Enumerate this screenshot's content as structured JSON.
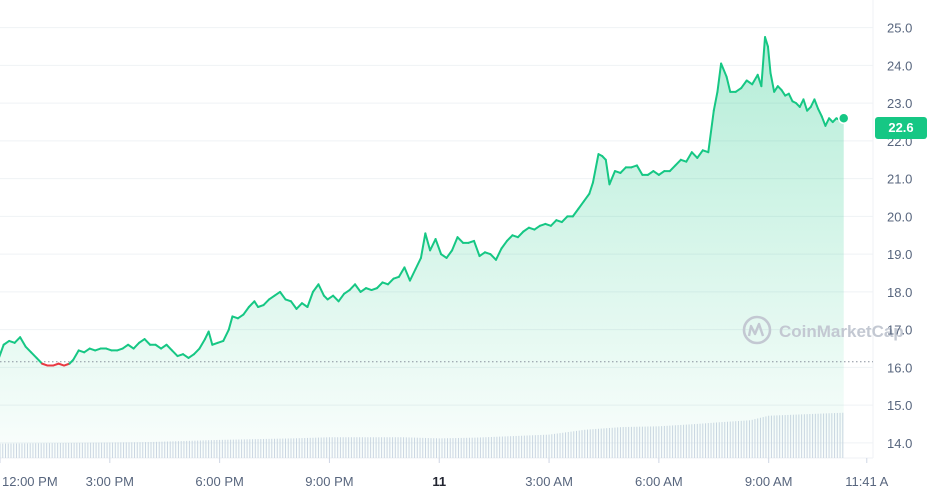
{
  "chart_data": {
    "type": "area",
    "title": "",
    "xlabel": "",
    "ylabel": "",
    "ylim": [
      13.6,
      25.6
    ],
    "y_ticks": [
      "25.0",
      "24.0",
      "23.0",
      "22.0",
      "21.0",
      "20.0",
      "19.0",
      "18.0",
      "17.0",
      "16.0",
      "15.0",
      "14.0"
    ],
    "x_ticks": [
      {
        "label": "12:00 PM",
        "hour": 0,
        "bold": false
      },
      {
        "label": "3:00 PM",
        "hour": 3,
        "bold": false
      },
      {
        "label": "6:00 PM",
        "hour": 6,
        "bold": false
      },
      {
        "label": "9:00 PM",
        "hour": 9,
        "bold": false
      },
      {
        "label": "11",
        "hour": 12,
        "bold": true
      },
      {
        "label": "3:00 AM",
        "hour": 15,
        "bold": false
      },
      {
        "label": "6:00 AM",
        "hour": 18,
        "bold": false
      },
      {
        "label": "9:00 AM",
        "hour": 21,
        "bold": false
      },
      {
        "label": "11:41 A",
        "hour": 23.68,
        "bold": false
      }
    ],
    "x_range_hours": [
      0,
      23.85
    ],
    "baseline": 16.15,
    "last_price_label": "22.6",
    "watermark": "CoinMarketCap",
    "grid": true,
    "colors": {
      "up": "#16c784",
      "down": "#ea3943",
      "fill_top": "#16c784",
      "grid": "#eff2f5",
      "volume": "#cfd6e4",
      "baseline": "#8a919e"
    },
    "series": [
      {
        "values": [
          [
            -0.05,
            16.2
          ],
          [
            0.1,
            16.6
          ],
          [
            0.25,
            16.7
          ],
          [
            0.4,
            16.65
          ],
          [
            0.55,
            16.8
          ],
          [
            0.7,
            16.55
          ],
          [
            0.85,
            16.4
          ],
          [
            1.0,
            16.25
          ],
          [
            1.15,
            16.1
          ],
          [
            1.3,
            16.05
          ],
          [
            1.45,
            16.05
          ],
          [
            1.6,
            16.1
          ],
          [
            1.75,
            16.05
          ],
          [
            1.9,
            16.1
          ],
          [
            2.0,
            16.2
          ],
          [
            2.15,
            16.45
          ],
          [
            2.3,
            16.4
          ],
          [
            2.45,
            16.5
          ],
          [
            2.6,
            16.45
          ],
          [
            2.75,
            16.5
          ],
          [
            2.9,
            16.5
          ],
          [
            3.05,
            16.45
          ],
          [
            3.2,
            16.45
          ],
          [
            3.35,
            16.5
          ],
          [
            3.5,
            16.6
          ],
          [
            3.65,
            16.5
          ],
          [
            3.8,
            16.65
          ],
          [
            3.95,
            16.75
          ],
          [
            4.1,
            16.6
          ],
          [
            4.25,
            16.6
          ],
          [
            4.4,
            16.5
          ],
          [
            4.55,
            16.6
          ],
          [
            4.7,
            16.45
          ],
          [
            4.85,
            16.3
          ],
          [
            5.0,
            16.35
          ],
          [
            5.15,
            16.25
          ],
          [
            5.3,
            16.35
          ],
          [
            5.45,
            16.5
          ],
          [
            5.6,
            16.75
          ],
          [
            5.7,
            16.95
          ],
          [
            5.8,
            16.6
          ],
          [
            5.95,
            16.65
          ],
          [
            6.1,
            16.7
          ],
          [
            6.25,
            17.0
          ],
          [
            6.35,
            17.35
          ],
          [
            6.5,
            17.3
          ],
          [
            6.65,
            17.4
          ],
          [
            6.8,
            17.6
          ],
          [
            6.95,
            17.75
          ],
          [
            7.05,
            17.6
          ],
          [
            7.2,
            17.65
          ],
          [
            7.35,
            17.8
          ],
          [
            7.5,
            17.9
          ],
          [
            7.65,
            18.0
          ],
          [
            7.8,
            17.8
          ],
          [
            7.95,
            17.75
          ],
          [
            8.1,
            17.55
          ],
          [
            8.25,
            17.7
          ],
          [
            8.4,
            17.6
          ],
          [
            8.55,
            18.0
          ],
          [
            8.7,
            18.2
          ],
          [
            8.85,
            17.9
          ],
          [
            8.95,
            17.8
          ],
          [
            9.1,
            17.9
          ],
          [
            9.25,
            17.75
          ],
          [
            9.4,
            17.95
          ],
          [
            9.55,
            18.05
          ],
          [
            9.7,
            18.2
          ],
          [
            9.85,
            18.0
          ],
          [
            10.0,
            18.1
          ],
          [
            10.15,
            18.05
          ],
          [
            10.3,
            18.1
          ],
          [
            10.45,
            18.25
          ],
          [
            10.6,
            18.2
          ],
          [
            10.75,
            18.35
          ],
          [
            10.9,
            18.4
          ],
          [
            11.05,
            18.65
          ],
          [
            11.2,
            18.3
          ],
          [
            11.35,
            18.6
          ],
          [
            11.5,
            18.9
          ],
          [
            11.62,
            19.55
          ],
          [
            11.75,
            19.1
          ],
          [
            11.9,
            19.4
          ],
          [
            12.05,
            19.0
          ],
          [
            12.2,
            18.9
          ],
          [
            12.35,
            19.1
          ],
          [
            12.5,
            19.45
          ],
          [
            12.65,
            19.3
          ],
          [
            12.8,
            19.3
          ],
          [
            12.95,
            19.35
          ],
          [
            13.1,
            18.95
          ],
          [
            13.25,
            19.05
          ],
          [
            13.4,
            19.0
          ],
          [
            13.55,
            18.85
          ],
          [
            13.7,
            19.15
          ],
          [
            13.85,
            19.35
          ],
          [
            14.0,
            19.5
          ],
          [
            14.15,
            19.45
          ],
          [
            14.3,
            19.6
          ],
          [
            14.45,
            19.7
          ],
          [
            14.6,
            19.65
          ],
          [
            14.75,
            19.75
          ],
          [
            14.9,
            19.8
          ],
          [
            15.05,
            19.75
          ],
          [
            15.2,
            19.9
          ],
          [
            15.35,
            19.85
          ],
          [
            15.5,
            20.0
          ],
          [
            15.65,
            20.0
          ],
          [
            15.8,
            20.2
          ],
          [
            15.95,
            20.4
          ],
          [
            16.1,
            20.6
          ],
          [
            16.2,
            20.9
          ],
          [
            16.35,
            21.65
          ],
          [
            16.45,
            21.6
          ],
          [
            16.55,
            21.5
          ],
          [
            16.65,
            20.85
          ],
          [
            16.8,
            21.2
          ],
          [
            16.95,
            21.15
          ],
          [
            17.1,
            21.3
          ],
          [
            17.25,
            21.3
          ],
          [
            17.4,
            21.35
          ],
          [
            17.55,
            21.1
          ],
          [
            17.7,
            21.1
          ],
          [
            17.85,
            21.2
          ],
          [
            18.0,
            21.1
          ],
          [
            18.15,
            21.2
          ],
          [
            18.3,
            21.2
          ],
          [
            18.45,
            21.35
          ],
          [
            18.6,
            21.5
          ],
          [
            18.75,
            21.45
          ],
          [
            18.9,
            21.7
          ],
          [
            19.05,
            21.55
          ],
          [
            19.2,
            21.75
          ],
          [
            19.35,
            21.7
          ],
          [
            19.5,
            22.8
          ],
          [
            19.6,
            23.3
          ],
          [
            19.7,
            24.05
          ],
          [
            19.85,
            23.7
          ],
          [
            19.95,
            23.3
          ],
          [
            20.1,
            23.3
          ],
          [
            20.25,
            23.4
          ],
          [
            20.4,
            23.6
          ],
          [
            20.55,
            23.5
          ],
          [
            20.7,
            23.75
          ],
          [
            20.8,
            23.45
          ],
          [
            20.9,
            24.75
          ],
          [
            20.98,
            24.5
          ],
          [
            21.05,
            23.8
          ],
          [
            21.15,
            23.3
          ],
          [
            21.25,
            23.45
          ],
          [
            21.35,
            23.35
          ],
          [
            21.45,
            23.2
          ],
          [
            21.55,
            23.25
          ],
          [
            21.65,
            23.05
          ],
          [
            21.75,
            23.0
          ],
          [
            21.85,
            22.9
          ],
          [
            21.95,
            23.1
          ],
          [
            22.05,
            22.8
          ],
          [
            22.15,
            22.9
          ],
          [
            22.25,
            23.1
          ],
          [
            22.35,
            22.85
          ],
          [
            22.45,
            22.65
          ],
          [
            22.55,
            22.4
          ],
          [
            22.65,
            22.6
          ],
          [
            22.75,
            22.5
          ],
          [
            22.85,
            22.6
          ],
          [
            22.95,
            22.55
          ],
          [
            23.05,
            22.6
          ]
        ]
      }
    ],
    "volume": [
      [
        0,
        13.98
      ],
      [
        1,
        13.99
      ],
      [
        2,
        14.0
      ],
      [
        3,
        14.01
      ],
      [
        4,
        14.02
      ],
      [
        5,
        14.05
      ],
      [
        6,
        14.08
      ],
      [
        7,
        14.1
      ],
      [
        8,
        14.12
      ],
      [
        9,
        14.15
      ],
      [
        10,
        14.15
      ],
      [
        11,
        14.15
      ],
      [
        12,
        14.12
      ],
      [
        13,
        14.14
      ],
      [
        14,
        14.18
      ],
      [
        15,
        14.22
      ],
      [
        16,
        14.35
      ],
      [
        17,
        14.42
      ],
      [
        18,
        14.44
      ],
      [
        19,
        14.5
      ],
      [
        19.7,
        14.55
      ],
      [
        20.5,
        14.6
      ],
      [
        21,
        14.72
      ],
      [
        22,
        14.76
      ],
      [
        23.05,
        14.8
      ]
    ]
  }
}
